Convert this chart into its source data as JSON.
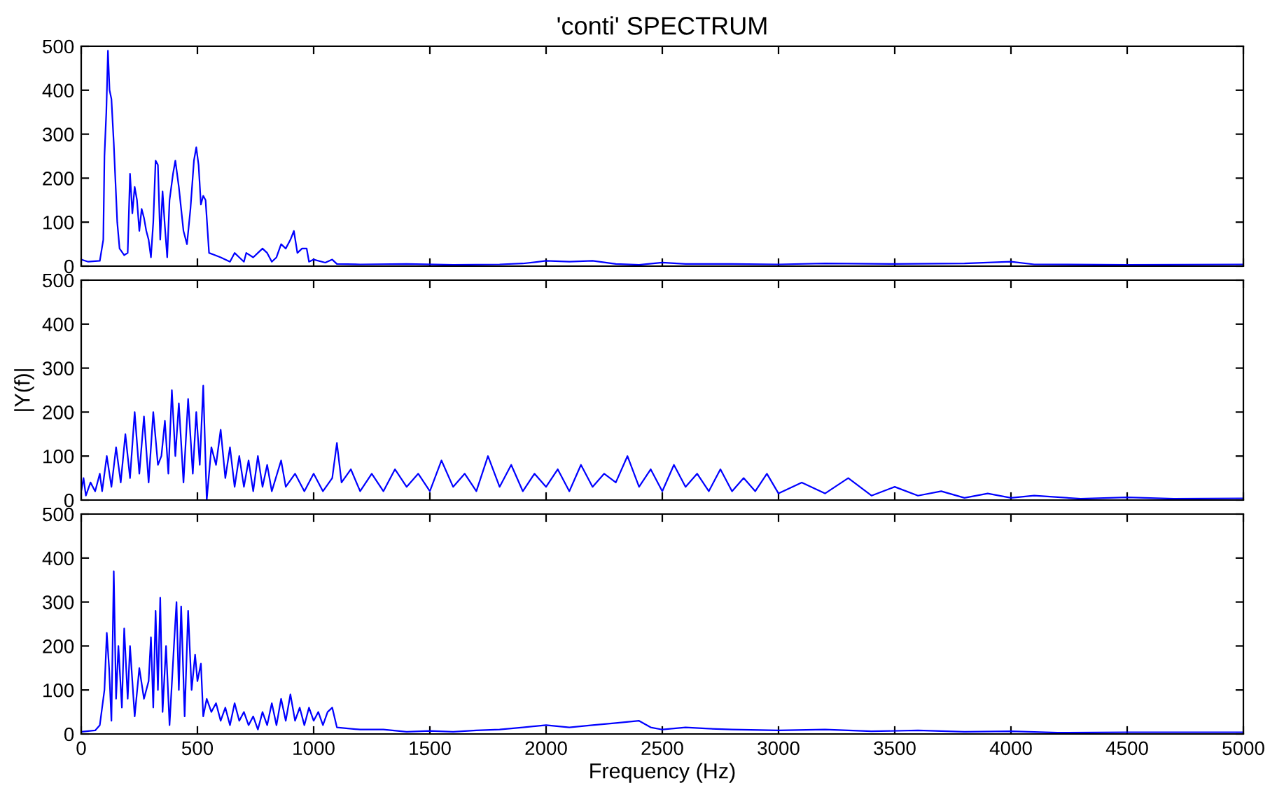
{
  "chart_data": [
    {
      "type": "line",
      "title": "'conti' SPECTRUM",
      "xlim": [
        0,
        5000
      ],
      "xticks": [
        0,
        500,
        1000,
        1500,
        2000,
        2500,
        3000,
        3500,
        4000,
        4500,
        5000
      ],
      "ylim": [
        0,
        500
      ],
      "yticks": [
        0,
        100,
        200,
        300,
        400,
        500
      ],
      "tick_labels": "y",
      "grid": false,
      "series": [
        {
          "color": "#0000ff",
          "x": [
            0,
            30,
            80,
            95,
            100,
            108,
            115,
            122,
            130,
            140,
            155,
            165,
            185,
            200,
            210,
            220,
            230,
            240,
            250,
            260,
            270,
            280,
            290,
            300,
            310,
            320,
            330,
            340,
            350,
            360,
            370,
            380,
            395,
            405,
            420,
            440,
            455,
            470,
            485,
            495,
            505,
            515,
            525,
            535,
            550,
            575,
            600,
            640,
            660,
            680,
            700,
            710,
            740,
            760,
            780,
            800,
            820,
            840,
            860,
            880,
            900,
            915,
            930,
            950,
            970,
            980,
            1000,
            1050,
            1080,
            1100,
            1200,
            1400,
            1600,
            1800,
            1900,
            2000,
            2100,
            2200,
            2300,
            2400,
            2500,
            2600,
            2800,
            3000,
            3200,
            3500,
            3800,
            4000,
            4100,
            4500,
            5000
          ],
          "values": [
            15,
            10,
            12,
            60,
            250,
            350,
            490,
            400,
            380,
            280,
            100,
            40,
            25,
            30,
            210,
            120,
            180,
            150,
            80,
            130,
            110,
            80,
            60,
            20,
            100,
            240,
            230,
            60,
            170,
            90,
            20,
            150,
            210,
            240,
            180,
            80,
            50,
            130,
            240,
            270,
            230,
            140,
            160,
            150,
            30,
            25,
            20,
            10,
            30,
            20,
            10,
            30,
            20,
            30,
            40,
            30,
            10,
            20,
            50,
            40,
            60,
            80,
            30,
            40,
            40,
            10,
            15,
            8,
            15,
            5,
            4,
            5,
            3,
            4,
            6,
            12,
            10,
            12,
            5,
            3,
            8,
            5,
            5,
            4,
            6,
            5,
            6,
            10,
            4,
            3,
            4
          ]
        }
      ]
    },
    {
      "type": "line",
      "ylabel": "|Y(f)|",
      "xlim": [
        0,
        5000
      ],
      "xticks": [
        0,
        500,
        1000,
        1500,
        2000,
        2500,
        3000,
        3500,
        4000,
        4500,
        5000
      ],
      "ylim": [
        0,
        500
      ],
      "yticks": [
        0,
        100,
        200,
        300,
        400,
        500
      ],
      "tick_labels": "y",
      "grid": false,
      "series": [
        {
          "color": "#0000ff",
          "x": [
            0,
            10,
            20,
            40,
            60,
            80,
            90,
            110,
            130,
            150,
            170,
            190,
            210,
            230,
            250,
            270,
            290,
            310,
            330,
            345,
            360,
            375,
            390,
            405,
            420,
            440,
            460,
            480,
            495,
            510,
            525,
            540,
            560,
            580,
            600,
            620,
            640,
            660,
            680,
            700,
            720,
            740,
            760,
            780,
            800,
            820,
            860,
            880,
            920,
            960,
            1000,
            1040,
            1080,
            1100,
            1120,
            1160,
            1200,
            1250,
            1300,
            1350,
            1400,
            1450,
            1500,
            1550,
            1600,
            1650,
            1700,
            1750,
            1800,
            1850,
            1900,
            1950,
            2000,
            2050,
            2100,
            2150,
            2200,
            2250,
            2300,
            2350,
            2400,
            2450,
            2500,
            2550,
            2600,
            2650,
            2700,
            2750,
            2800,
            2850,
            2900,
            2950,
            3000,
            3100,
            3200,
            3300,
            3400,
            3500,
            3600,
            3700,
            3800,
            3900,
            4000,
            4100,
            4300,
            4500,
            4700,
            5000
          ],
          "values": [
            20,
            50,
            10,
            40,
            20,
            60,
            20,
            100,
            30,
            120,
            40,
            150,
            50,
            200,
            60,
            190,
            40,
            200,
            80,
            100,
            180,
            60,
            250,
            100,
            220,
            40,
            230,
            60,
            200,
            80,
            260,
            0,
            120,
            80,
            160,
            50,
            120,
            30,
            100,
            30,
            90,
            20,
            100,
            30,
            80,
            20,
            90,
            30,
            60,
            20,
            60,
            20,
            50,
            130,
            40,
            70,
            20,
            60,
            20,
            70,
            30,
            60,
            20,
            90,
            30,
            60,
            20,
            100,
            30,
            80,
            20,
            60,
            30,
            70,
            20,
            80,
            30,
            60,
            40,
            100,
            30,
            70,
            20,
            80,
            30,
            60,
            20,
            70,
            20,
            50,
            20,
            60,
            15,
            40,
            15,
            50,
            10,
            30,
            10,
            20,
            5,
            15,
            5,
            10,
            3,
            6,
            3,
            4
          ]
        }
      ]
    },
    {
      "type": "line",
      "xlabel": "Frequency (Hz)",
      "xlim": [
        0,
        5000
      ],
      "xticks": [
        0,
        500,
        1000,
        1500,
        2000,
        2500,
        3000,
        3500,
        4000,
        4500,
        5000
      ],
      "ylim": [
        0,
        500
      ],
      "yticks": [
        0,
        100,
        200,
        300,
        400,
        500
      ],
      "grid": false,
      "series": [
        {
          "color": "#0000ff",
          "x": [
            0,
            60,
            80,
            100,
            110,
            120,
            130,
            140,
            150,
            160,
            175,
            185,
            200,
            210,
            230,
            250,
            270,
            290,
            300,
            310,
            320,
            330,
            340,
            350,
            365,
            380,
            400,
            410,
            420,
            430,
            445,
            460,
            475,
            490,
            500,
            515,
            525,
            540,
            560,
            580,
            600,
            620,
            640,
            660,
            680,
            700,
            720,
            740,
            760,
            780,
            800,
            820,
            840,
            860,
            880,
            900,
            920,
            940,
            960,
            980,
            1000,
            1020,
            1040,
            1060,
            1080,
            1100,
            1200,
            1300,
            1400,
            1500,
            1600,
            1700,
            1800,
            1900,
            2000,
            2100,
            2200,
            2300,
            2400,
            2450,
            2500,
            2600,
            2700,
            2800,
            3000,
            3200,
            3400,
            3600,
            3800,
            4000,
            4200,
            4500,
            5000
          ],
          "values": [
            5,
            8,
            20,
            100,
            230,
            150,
            30,
            370,
            80,
            200,
            60,
            240,
            80,
            200,
            40,
            150,
            80,
            120,
            220,
            60,
            280,
            100,
            310,
            50,
            200,
            20,
            210,
            300,
            100,
            290,
            40,
            280,
            100,
            180,
            120,
            160,
            40,
            80,
            50,
            70,
            30,
            60,
            20,
            70,
            30,
            50,
            20,
            40,
            10,
            50,
            20,
            70,
            20,
            80,
            30,
            90,
            30,
            60,
            20,
            60,
            30,
            50,
            20,
            50,
            60,
            15,
            10,
            10,
            5,
            7,
            5,
            8,
            10,
            15,
            20,
            15,
            20,
            25,
            30,
            15,
            10,
            15,
            12,
            10,
            8,
            10,
            6,
            8,
            5,
            6,
            3,
            4,
            4
          ]
        }
      ]
    }
  ]
}
